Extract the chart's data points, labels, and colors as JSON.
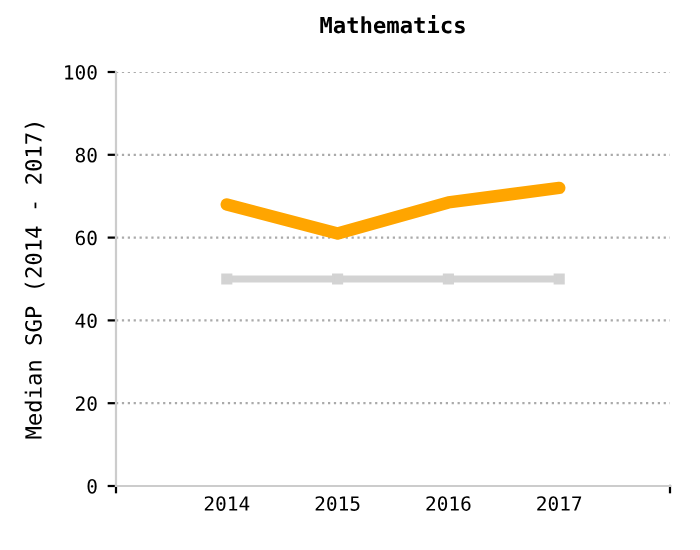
{
  "chart_data": {
    "type": "line",
    "title": "Mathematics",
    "ylabel": "Median SGP (2014 - 2017)",
    "categories": [
      "2014",
      "2015",
      "2016",
      "2017"
    ],
    "series": [
      {
        "color": "#d3d3d3",
        "values": [
          50,
          50,
          50,
          50
        ],
        "marker": "square"
      },
      {
        "color": "#ffa500",
        "values": [
          68,
          61,
          68.5,
          72
        ],
        "marker": "none"
      }
    ],
    "ylim": [
      0,
      100
    ],
    "yticks": [
      0,
      20,
      40,
      60,
      80,
      100
    ],
    "grid": "y",
    "legend": false
  }
}
